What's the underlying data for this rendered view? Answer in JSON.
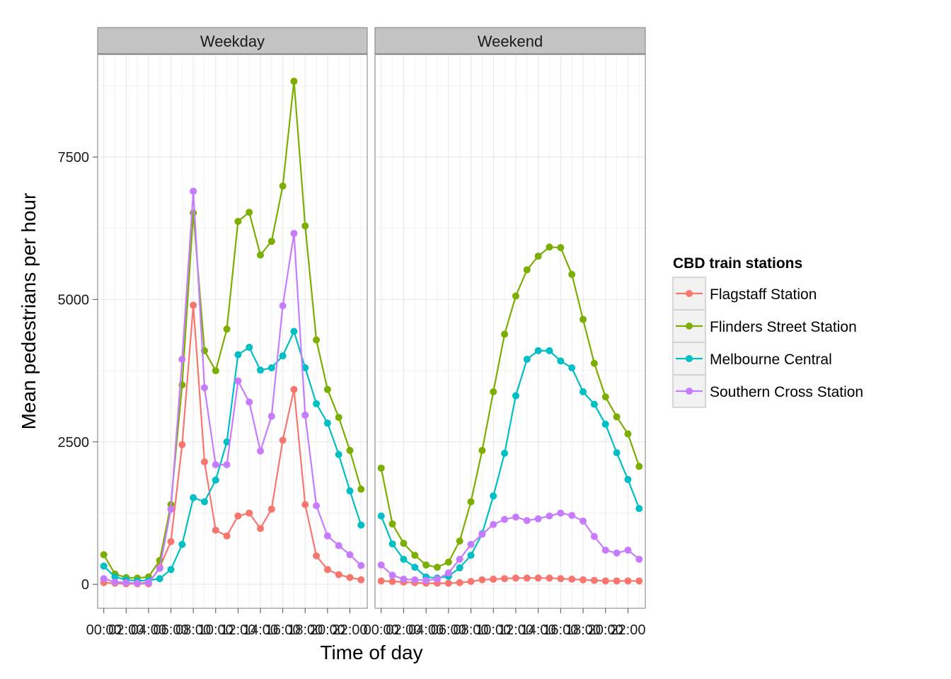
{
  "chart_data": {
    "type": "line",
    "ylabel": "Mean pedestrians per hour",
    "xlabel": "Time of day",
    "legend_title": "CBD train stations",
    "legend_position": "right",
    "ylim": [
      -420,
      9300
    ],
    "yticks": [
      0,
      2500,
      5000,
      7500
    ],
    "hours": [
      0,
      1,
      2,
      3,
      4,
      5,
      6,
      7,
      8,
      9,
      10,
      11,
      12,
      13,
      14,
      15,
      16,
      17,
      18,
      19,
      20,
      21,
      22,
      23
    ],
    "xtick_labels": [
      "00:00",
      "02:00",
      "04:00",
      "06:00",
      "08:00",
      "10:00",
      "12:00",
      "14:00",
      "16:00",
      "18:00",
      "20:00",
      "22:00"
    ],
    "grid": true,
    "panels": [
      {
        "label": "Weekday",
        "series": [
          {
            "name": "Flagstaff Station",
            "color": "#F8766D",
            "values": [
              30,
              20,
              10,
              10,
              10,
              300,
              750,
              2450,
              4900,
              2150,
              950,
              850,
              1200,
              1250,
              980,
              1320,
              2530,
              3420,
              1400,
              500,
              260,
              170,
              120,
              80
            ]
          },
          {
            "name": "Flinders Street Station",
            "color": "#7CAE00",
            "values": [
              520,
              180,
              120,
              110,
              130,
              420,
              1400,
              3500,
              6520,
              4100,
              3750,
              4480,
              6370,
              6530,
              5780,
              6020,
              6990,
              8830,
              6290,
              4290,
              3420,
              2930,
              2350,
              1670
            ]
          },
          {
            "name": "Melbourne Central",
            "color": "#00BFC4",
            "values": [
              320,
              130,
              80,
              60,
              70,
              100,
              260,
              700,
              1520,
              1450,
              1830,
              2500,
              4030,
              4160,
              3760,
              3800,
              4010,
              4440,
              3800,
              3170,
              2830,
              2280,
              1640,
              1040
            ]
          },
          {
            "name": "Southern Cross Station",
            "color": "#C77CFF",
            "values": [
              100,
              40,
              30,
              20,
              30,
              280,
              1320,
              3950,
              6900,
              3450,
              2100,
              2100,
              3570,
              3200,
              2340,
              2950,
              4890,
              6160,
              2970,
              1380,
              850,
              680,
              520,
              330
            ]
          }
        ]
      },
      {
        "label": "Weekend",
        "series": [
          {
            "name": "Flagstaff Station",
            "color": "#F8766D",
            "values": [
              60,
              50,
              40,
              30,
              20,
              20,
              20,
              30,
              50,
              80,
              90,
              100,
              110,
              110,
              110,
              110,
              100,
              90,
              80,
              70,
              60,
              60,
              60,
              60
            ]
          },
          {
            "name": "Flinders Street Station",
            "color": "#7CAE00",
            "values": [
              2040,
              1060,
              720,
              510,
              340,
              300,
              390,
              760,
              1450,
              2350,
              3380,
              4390,
              5060,
              5520,
              5760,
              5920,
              5910,
              5440,
              4650,
              3880,
              3290,
              2940,
              2640,
              2070
            ]
          },
          {
            "name": "Melbourne Central",
            "color": "#00BFC4",
            "values": [
              1200,
              710,
              440,
              300,
              130,
              110,
              140,
              290,
              510,
              890,
              1550,
              2300,
              3310,
              3950,
              4100,
              4100,
              3920,
              3800,
              3380,
              3160,
              2810,
              2310,
              1840,
              1330
            ]
          },
          {
            "name": "Southern Cross Station",
            "color": "#C77CFF",
            "values": [
              340,
              160,
              90,
              80,
              70,
              90,
              200,
              440,
              700,
              880,
              1050,
              1140,
              1180,
              1120,
              1150,
              1200,
              1250,
              1210,
              1110,
              840,
              600,
              550,
              600,
              440
            ]
          }
        ]
      }
    ]
  }
}
